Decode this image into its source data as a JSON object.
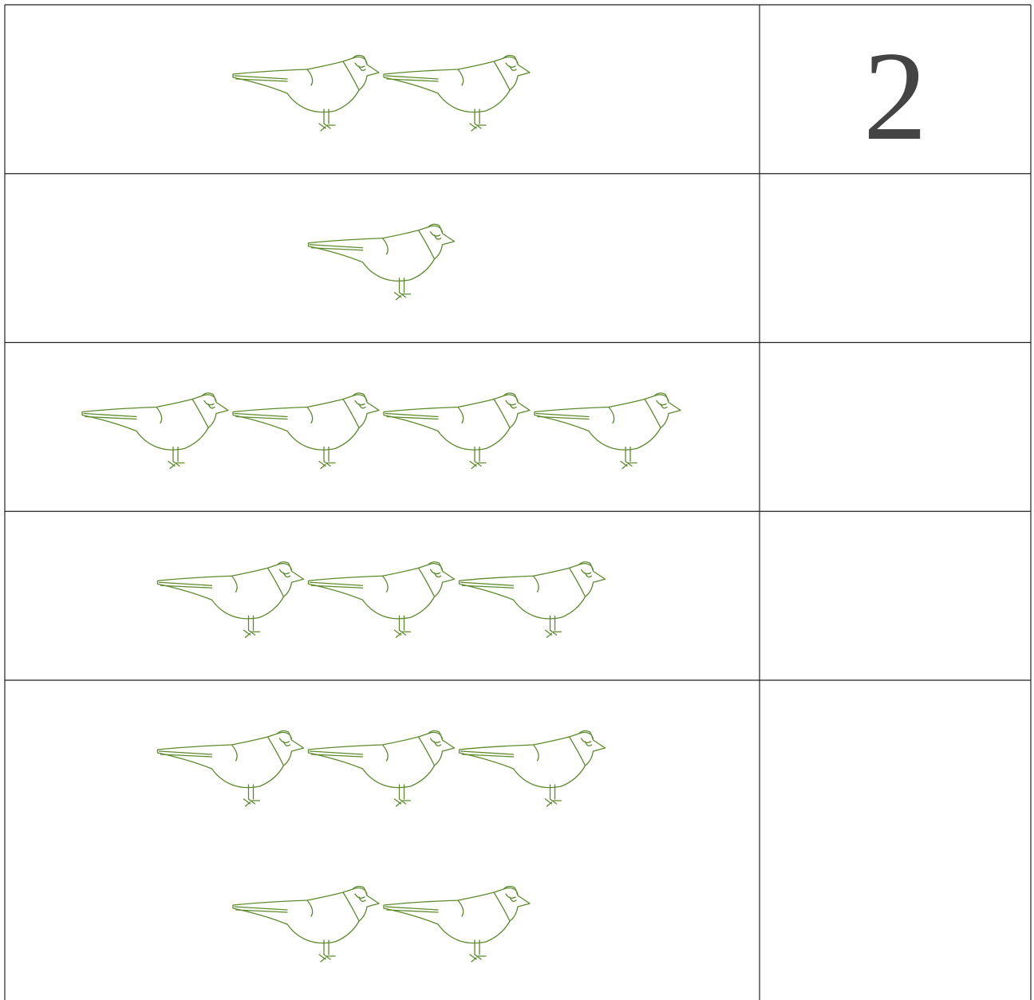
{
  "rows": [
    {
      "birds": 2,
      "answer": "2"
    },
    {
      "birds": 1
    },
    {
      "birds": 4
    },
    {
      "birds": 3
    },
    {
      "birds": 5
    }
  ]
}
